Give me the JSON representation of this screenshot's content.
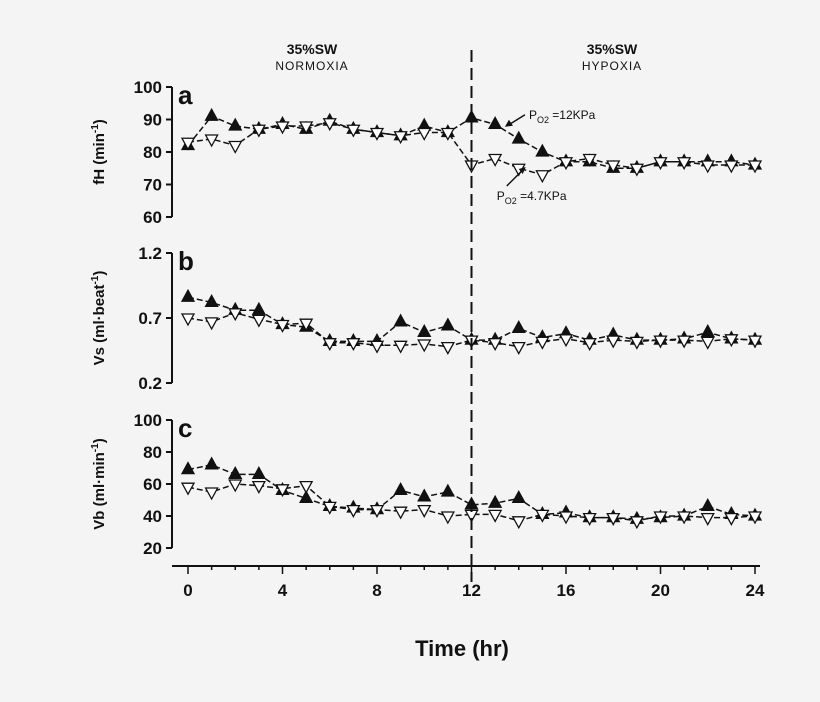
{
  "chart_data": {
    "type": "line",
    "headers": {
      "left": {
        "line1": "35%SW",
        "line2": "NORMOXIA"
      },
      "right": {
        "line1": "35%SW",
        "line2": "HYPOXIA"
      }
    },
    "xlabel": "Time (hr)",
    "xlim": [
      0,
      24
    ],
    "xticks": [
      0,
      4,
      8,
      12,
      16,
      20,
      24
    ],
    "x": [
      0,
      1,
      2,
      3,
      4,
      5,
      6,
      7,
      8,
      9,
      10,
      11,
      12,
      13,
      14,
      15,
      16,
      17,
      18,
      19,
      20,
      21,
      22,
      23,
      24
    ],
    "vertical_marker_x": 12,
    "colors": {
      "filled_series": "#111111",
      "open_series": "#ffffff",
      "axes": "#111111",
      "background": "#f4f4f4"
    },
    "panels": [
      {
        "letter": "a",
        "ylabel": "fH (min",
        "ylabel_sup": "-1",
        "ylabel_end": ")",
        "ylim": [
          60,
          100
        ],
        "yticks": [
          "60",
          "70",
          "80",
          "90",
          "100"
        ],
        "ytick_values": [
          60,
          70,
          80,
          90,
          100
        ],
        "annotations": [
          {
            "text_p": "P",
            "text_sub": "O2",
            "text_rest": " =12KPa",
            "series": "filled",
            "x": 13.5,
            "y": 89
          },
          {
            "text_p": "P",
            "text_sub": "O2",
            "text_rest": " =4.7KPa",
            "series": "open",
            "x": 14,
            "y": 72
          }
        ],
        "series": [
          {
            "marker": "filled-triangle-up",
            "values": [
              82,
              91,
              88,
              87,
              88.5,
              87,
              89.5,
              87,
              86,
              85,
              88,
              86,
              90.5,
              88.5,
              84,
              80,
              77,
              77,
              75,
              75,
              77,
              77,
              77,
              77,
              76
            ]
          },
          {
            "marker": "open-triangle-down",
            "values": [
              83,
              84,
              82,
              87,
              88,
              88,
              89,
              87,
              86,
              85,
              86,
              86,
              76,
              78,
              75,
              73,
              77,
              78,
              76,
              75,
              77,
              77,
              76,
              76,
              76
            ]
          }
        ]
      },
      {
        "letter": "b",
        "ylabel": "Vs (ml",
        "ylabel_mid": "·beat",
        "ylabel_sup": "-1",
        "ylabel_end": ")",
        "ylim": [
          0.2,
          1.2
        ],
        "yticks": [
          "0.2",
          "0.7",
          "1.2"
        ],
        "ytick_values": [
          0.2,
          0.7,
          1.2
        ],
        "series": [
          {
            "marker": "filled-triangle-up",
            "values": [
              0.86,
              0.82,
              0.76,
              0.76,
              0.65,
              0.63,
              0.52,
              0.52,
              0.52,
              0.67,
              0.59,
              0.64,
              0.53,
              0.53,
              0.62,
              0.55,
              0.58,
              0.53,
              0.57,
              0.53,
              0.53,
              0.54,
              0.59,
              0.54,
              0.53
            ]
          },
          {
            "marker": "open-triangle-down",
            "values": [
              0.7,
              0.67,
              0.74,
              0.69,
              0.65,
              0.66,
              0.51,
              0.51,
              0.49,
              0.49,
              0.5,
              0.48,
              0.53,
              0.51,
              0.48,
              0.52,
              0.54,
              0.51,
              0.53,
              0.52,
              0.53,
              0.53,
              0.52,
              0.54,
              0.53
            ]
          }
        ]
      },
      {
        "letter": "c",
        "ylabel": "Vb (ml",
        "ylabel_mid": "·min",
        "ylabel_sup": "-1",
        "ylabel_end": ")",
        "ylim": [
          20,
          100
        ],
        "yticks": [
          "20",
          "40",
          "60",
          "80",
          "100"
        ],
        "ytick_values": [
          20,
          40,
          60,
          80,
          100
        ],
        "series": [
          {
            "marker": "filled-triangle-up",
            "values": [
              69,
              72,
              66,
              66,
              56,
              51,
              46,
              45,
              44,
              56,
              52,
              55,
              47,
              48,
              51,
              41,
              42,
              39,
              39,
              38,
              39,
              40,
              46,
              41,
              40
            ]
          },
          {
            "marker": "open-triangle-down",
            "values": [
              58,
              55,
              60,
              59,
              57,
              59,
              46,
              44,
              44,
              43,
              44,
              40,
              41,
              41,
              37,
              41,
              40,
              39,
              39,
              37,
              40,
              40,
              39,
              39,
              40
            ]
          }
        ]
      }
    ]
  }
}
